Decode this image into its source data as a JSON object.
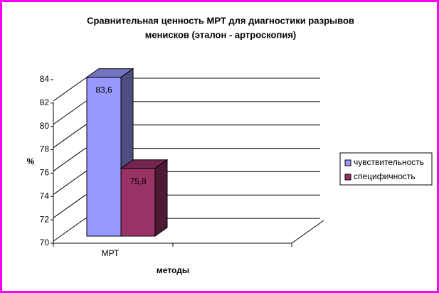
{
  "chart_data": {
    "type": "bar3d",
    "title": "Сравнительная ценность МРТ для диагностики разрывов",
    "subtitle": "менисков (эталон - артроскопия)",
    "y_label": "%",
    "x_label": "методы",
    "categories": [
      "МРТ"
    ],
    "series": [
      {
        "name": "чувствительность",
        "color": "#9999ff",
        "values": [
          83.6
        ],
        "value_labels": [
          "83,6"
        ]
      },
      {
        "name": "специфичность",
        "color": "#993366",
        "values": [
          75.8
        ],
        "value_labels": [
          "75,8"
        ]
      }
    ],
    "ylim": [
      70,
      84
    ],
    "yticks": [
      70,
      72,
      74,
      76,
      78,
      80,
      82,
      84
    ],
    "grid": true,
    "legend": "right"
  }
}
